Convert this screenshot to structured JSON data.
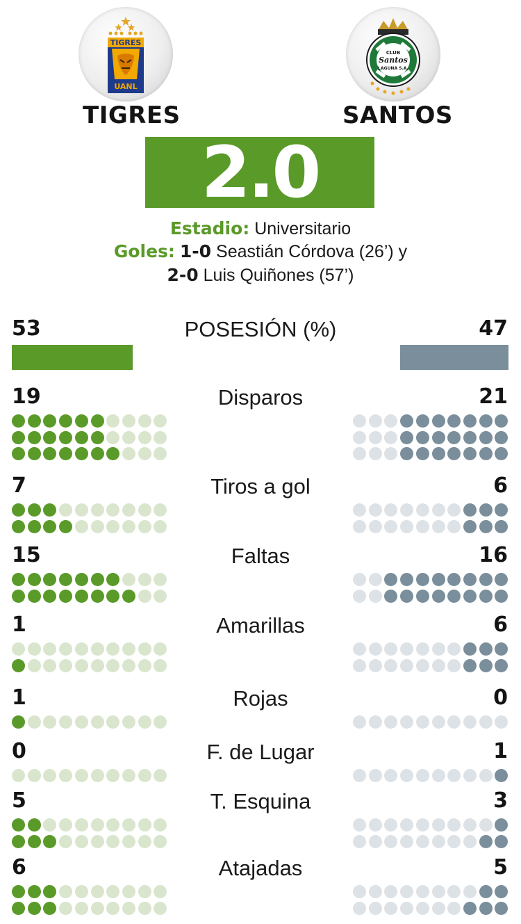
{
  "teams": {
    "home": {
      "name": "TIGRES",
      "logo": "tigres-crest-icon",
      "logo_text": [
        "TIGRES",
        "UANL"
      ]
    },
    "away": {
      "name": "SANTOS",
      "logo": "santos-crest-icon",
      "logo_text": [
        "CLUB",
        "Santos",
        "LAGUNA S.A."
      ]
    }
  },
  "score": "2.0",
  "match_info": {
    "stadium_label": "Estadio:",
    "stadium_value": "Universitario",
    "goals_label": "Goles:",
    "goal1_score": "1-0",
    "goal1_text": "Seastián Córdova (26’) y",
    "goal2_score": "2-0",
    "goal2_text": "Luis Quiñones (57’)"
  },
  "possession": {
    "label": "POSESIÓN (%)",
    "home": "53",
    "away": "47"
  },
  "stats": [
    {
      "label": "Disparos",
      "home": "19",
      "away": "21",
      "rows": 3
    },
    {
      "label": "Tiros a gol",
      "home": "7",
      "away": "6",
      "rows": 2
    },
    {
      "label": "Faltas",
      "home": "15",
      "away": "16",
      "rows": 2
    },
    {
      "label": "Amarillas",
      "home": "1",
      "away": "6",
      "rows": 2
    },
    {
      "label": "Rojas",
      "home": "1",
      "away": "0",
      "rows": 1
    },
    {
      "label": "F. de Lugar",
      "home": "0",
      "away": "1",
      "rows": 1
    },
    {
      "label": "T. Esquina",
      "home": "5",
      "away": "3",
      "rows": 2
    },
    {
      "label": "Atajadas",
      "home": "6",
      "away": "5",
      "rows": 2
    }
  ],
  "colors": {
    "home_filled": "#5a9a29",
    "home_empty": "#d9e6cd",
    "away_filled": "#7a8e9b",
    "away_empty": "#dde2e7",
    "accent": "#5a9a29"
  }
}
